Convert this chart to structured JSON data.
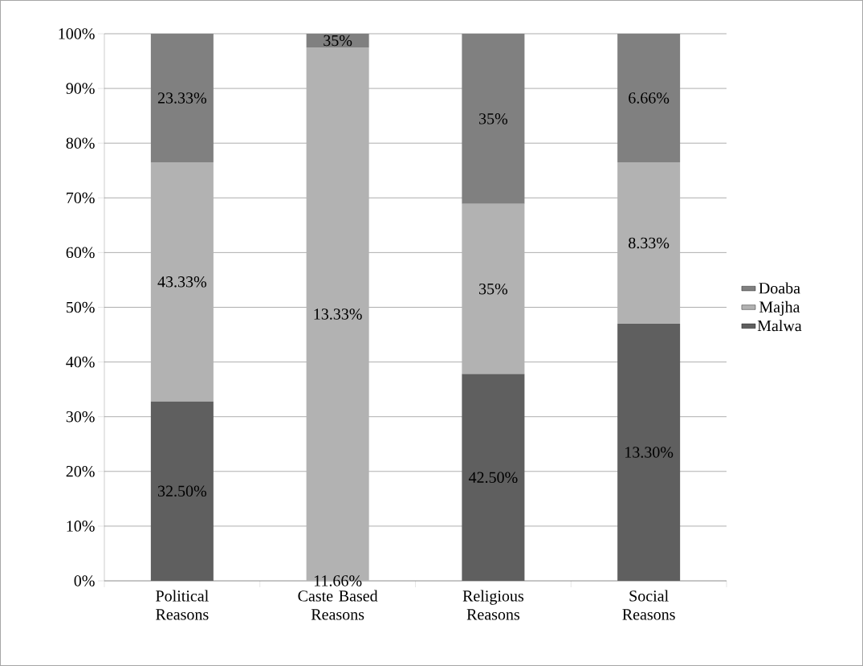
{
  "chart_data": {
    "type": "bar",
    "stacked": true,
    "categories": [
      "Political Reasons",
      "Caste Based Reasons",
      "Religious Reasons",
      "Social Reasons"
    ],
    "series": [
      {
        "name": "Malwa",
        "color": "#5f5f5f",
        "values": [
          32.8,
          0,
          37.8,
          47.0
        ]
      },
      {
        "name": "Majha",
        "color": "#b2b2b2",
        "values": [
          43.7,
          97.5,
          31.1,
          29.5
        ]
      },
      {
        "name": "Doaba",
        "color": "#808080",
        "values": [
          23.5,
          2.5,
          31.1,
          23.5
        ]
      }
    ],
    "annotations": [
      "32.50%",
      "11.66%",
      "42.50%",
      "13.30%",
      "43.33%",
      "13.33%",
      "35%",
      "8.33%",
      "23.33%",
      "35%",
      "35%",
      "6.66%"
    ],
    "ylim": [
      0,
      100
    ],
    "yticks": [
      {
        "value": 0,
        "label": "0%"
      },
      {
        "value": 10,
        "label": "10%"
      },
      {
        "value": 20,
        "label": "20%"
      },
      {
        "value": 30,
        "label": "30%"
      },
      {
        "value": 40,
        "label": "40%"
      },
      {
        "value": 50,
        "label": "50%"
      },
      {
        "value": 60,
        "label": "60%"
      },
      {
        "value": 70,
        "label": "70%"
      },
      {
        "value": 80,
        "label": "80%"
      },
      {
        "value": 90,
        "label": "90%"
      },
      {
        "value": 100,
        "label": "100%"
      }
    ],
    "grid": "y",
    "legend": "right"
  }
}
